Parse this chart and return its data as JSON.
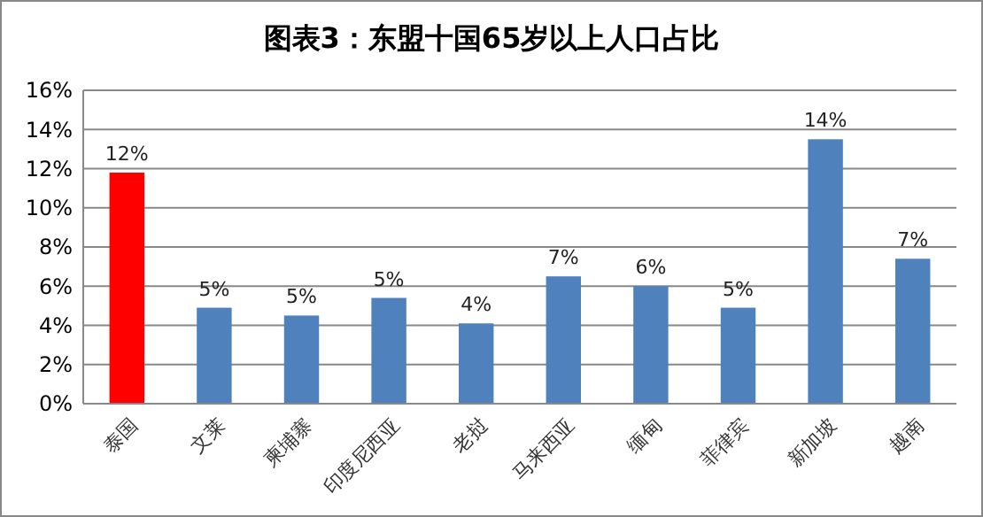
{
  "chart_data": {
    "type": "bar",
    "title": "图表3：东盟十国65岁以上人口占比",
    "categories": [
      "泰国",
      "文莱",
      "柬埔寨",
      "印度尼西亚",
      "老挝",
      "马来西亚",
      "缅甸",
      "菲律宾",
      "新加坡",
      "越南"
    ],
    "values": [
      11.8,
      4.9,
      4.5,
      5.4,
      4.1,
      6.5,
      6.0,
      4.9,
      13.5,
      7.4
    ],
    "colors": [
      "#ff0000",
      "#4f81bd",
      "#4f81bd",
      "#4f81bd",
      "#4f81bd",
      "#4f81bd",
      "#4f81bd",
      "#4f81bd",
      "#4f81bd",
      "#4f81bd"
    ],
    "value_labels": [
      "12%",
      "5%",
      "5%",
      "5%",
      "4%",
      "7%",
      "6%",
      "5%",
      "14%",
      "7%"
    ],
    "ylim": [
      0,
      16
    ],
    "yticks": [
      {
        "value": 0,
        "label": "0%"
      },
      {
        "value": 2,
        "label": "2%"
      },
      {
        "value": 4,
        "label": "4%"
      },
      {
        "value": 6,
        "label": "6%"
      },
      {
        "value": 8,
        "label": "8%"
      },
      {
        "value": 10,
        "label": "10%"
      },
      {
        "value": 12,
        "label": "12%"
      },
      {
        "value": 14,
        "label": "14%"
      },
      {
        "value": 16,
        "label": "16%"
      }
    ],
    "grid": "y"
  }
}
